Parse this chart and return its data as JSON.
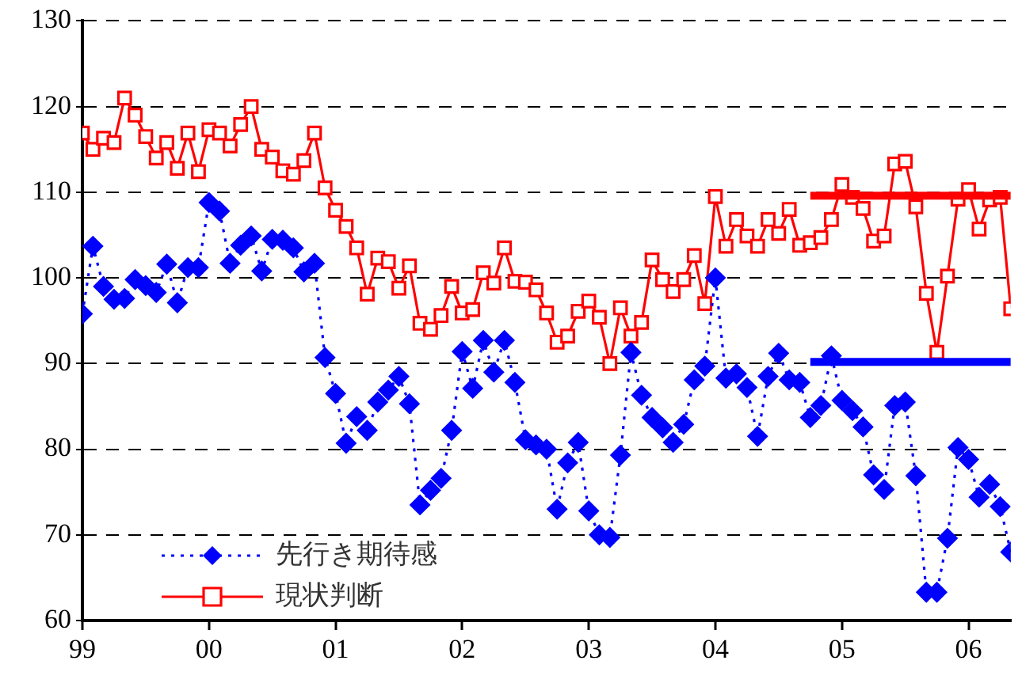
{
  "chart_data": {
    "type": "line",
    "x": [
      "1999-01",
      "1999-02",
      "1999-03",
      "1999-04",
      "1999-05",
      "1999-06",
      "1999-07",
      "1999-08",
      "1999-09",
      "1999-10",
      "1999-11",
      "1999-12",
      "2000-01",
      "2000-02",
      "2000-03",
      "2000-04",
      "2000-05",
      "2000-06",
      "2000-07",
      "2000-08",
      "2000-09",
      "2000-10",
      "2000-11",
      "2000-12",
      "2001-01",
      "2001-02",
      "2001-03",
      "2001-04",
      "2001-05",
      "2001-06",
      "2001-07",
      "2001-08",
      "2001-09",
      "2001-10",
      "2001-11",
      "2001-12",
      "2002-01",
      "2002-02",
      "2002-03",
      "2002-04",
      "2002-05",
      "2002-06",
      "2002-07",
      "2002-08",
      "2002-09",
      "2002-10",
      "2002-11",
      "2002-12",
      "2003-01",
      "2003-02",
      "2003-03",
      "2003-04",
      "2003-05",
      "2003-06",
      "2003-07",
      "2003-08",
      "2003-09",
      "2003-10",
      "2003-11",
      "2003-12",
      "2004-01",
      "2004-02",
      "2004-03",
      "2004-04",
      "2004-05",
      "2004-06",
      "2004-07",
      "2004-08",
      "2004-09",
      "2004-10",
      "2004-11",
      "2004-12",
      "2005-01",
      "2005-02",
      "2005-03",
      "2005-04",
      "2005-05",
      "2005-06",
      "2005-07",
      "2005-08",
      "2005-09",
      "2005-10",
      "2005-11",
      "2005-12",
      "2006-01",
      "2006-02",
      "2006-03",
      "2006-04",
      "2006-05"
    ],
    "series": [
      {
        "name": "先行き期待感",
        "color": "#0000ff",
        "marker": "diamond",
        "line_style": "dotted",
        "values": [
          95.8,
          103.7,
          99.0,
          97.5,
          97.6,
          99.8,
          99.1,
          98.3,
          101.6,
          97.1,
          101.2,
          101.2,
          108.8,
          107.8,
          101.7,
          103.8,
          104.9,
          100.8,
          104.5,
          104.4,
          103.5,
          100.7,
          101.7,
          90.7,
          86.5,
          80.7,
          83.8,
          82.2,
          85.5,
          86.9,
          88.5,
          85.3,
          73.5,
          75.2,
          76.6,
          82.2,
          91.4,
          87.1,
          92.7,
          89.0,
          92.7,
          87.8,
          81.1,
          80.5,
          80.0,
          73.0,
          78.4,
          80.8,
          72.8,
          70.0,
          69.7,
          79.3,
          91.3,
          86.3,
          83.7,
          82.5,
          80.8,
          82.9,
          88.1,
          89.7,
          100.0,
          88.3,
          88.8,
          87.2,
          81.5,
          88.5,
          91.2,
          88.1,
          87.8,
          83.7,
          85.1,
          90.9,
          85.7,
          84.5,
          82.6,
          77.0,
          75.3,
          85.1,
          85.5,
          76.9,
          63.3,
          63.3,
          69.6,
          80.2,
          78.8,
          74.4,
          75.9,
          73.3,
          68.0
        ]
      },
      {
        "name": "現状判断",
        "color": "#ff0000",
        "marker": "square",
        "line_style": "solid",
        "values": [
          116.9,
          115.0,
          116.3,
          115.8,
          121.0,
          119.0,
          116.5,
          114.0,
          115.8,
          112.8,
          116.9,
          112.4,
          117.3,
          116.9,
          115.4,
          117.9,
          120.0,
          115.0,
          114.1,
          112.5,
          112.1,
          113.7,
          116.9,
          110.5,
          107.9,
          106.0,
          103.5,
          98.1,
          102.3,
          101.9,
          98.8,
          101.4,
          94.7,
          94.0,
          95.6,
          99.0,
          95.9,
          96.3,
          100.6,
          99.4,
          103.5,
          99.6,
          99.5,
          98.6,
          95.9,
          92.5,
          93.2,
          96.1,
          97.3,
          95.4,
          90.0,
          96.5,
          93.2,
          94.8,
          102.1,
          99.8,
          98.4,
          99.8,
          102.6,
          97.0,
          109.5,
          103.7,
          106.8,
          104.9,
          103.7,
          106.8,
          105.2,
          108.0,
          103.8,
          104.1,
          104.7,
          106.8,
          110.9,
          109.4,
          108.1,
          104.3,
          104.9,
          113.3,
          113.6,
          108.3,
          98.2,
          91.3,
          100.2,
          109.2,
          110.3,
          105.7,
          109.1,
          109.4,
          96.4
        ]
      },
      {
        "color": "#ff0000",
        "marker": "none",
        "line_style": "solid",
        "x": [
          "2004-10",
          "2006-05"
        ],
        "values": [
          109.6,
          109.6
        ]
      },
      {
        "color": "#0000ff",
        "marker": "none",
        "line_style": "solid",
        "x": [
          "2004-10",
          "2006-05"
        ],
        "values": [
          90.2,
          90.2
        ]
      }
    ],
    "xlim": [
      "1999-01",
      "2006-05"
    ],
    "xticks": [
      {
        "value": "1999-01",
        "label": "99"
      },
      {
        "value": "2000-01",
        "label": "00"
      },
      {
        "value": "2001-01",
        "label": "01"
      },
      {
        "value": "2002-01",
        "label": "02"
      },
      {
        "value": "2003-01",
        "label": "03"
      },
      {
        "value": "2004-01",
        "label": "04"
      },
      {
        "value": "2005-01",
        "label": "05"
      },
      {
        "value": "2006-01",
        "label": "06"
      }
    ],
    "ylim": [
      60,
      130
    ],
    "yticks": [
      60,
      70,
      80,
      90,
      100,
      110,
      120,
      130
    ],
    "grid": "y",
    "legend": "bottom left"
  }
}
